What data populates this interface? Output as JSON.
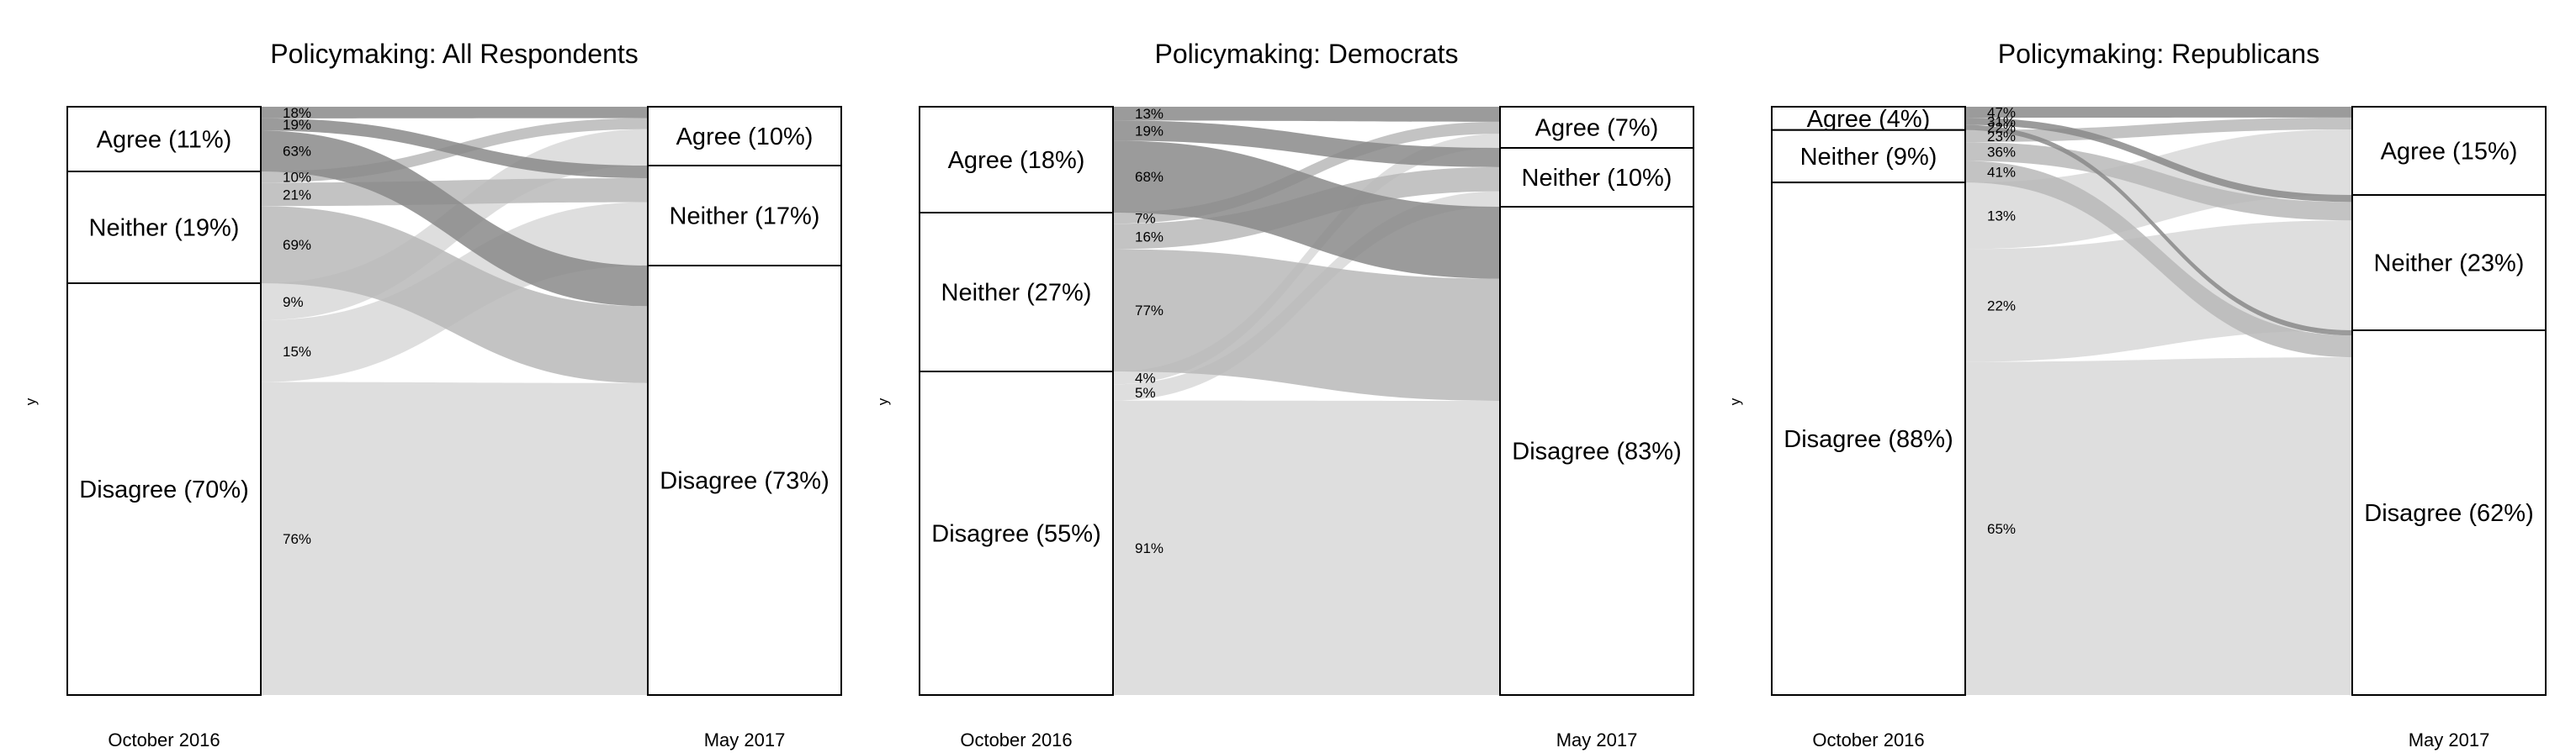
{
  "chart_data": [
    {
      "type": "alluvial",
      "title": "Policymaking: All Respondents",
      "ylabel": "y",
      "axis_left_label": "October 2016",
      "axis_right_label": "May 2017",
      "left": [
        {
          "name": "Agree",
          "label": "Agree (11%)",
          "value": 11
        },
        {
          "name": "Neither",
          "label": "Neither (19%)",
          "value": 19
        },
        {
          "name": "Disagree",
          "label": "Disagree (70%)",
          "value": 70
        }
      ],
      "right": [
        {
          "name": "Agree",
          "label": "Agree (10%)",
          "value": 10
        },
        {
          "name": "Neither",
          "label": "Neither (17%)",
          "value": 17
        },
        {
          "name": "Disagree",
          "label": "Disagree (73%)",
          "value": 73
        }
      ],
      "flows": [
        {
          "from": "Agree",
          "to": "Agree",
          "pct": 18,
          "label": "18%"
        },
        {
          "from": "Agree",
          "to": "Neither",
          "pct": 19,
          "label": "19%"
        },
        {
          "from": "Agree",
          "to": "Disagree",
          "pct": 63,
          "label": "63%"
        },
        {
          "from": "Neither",
          "to": "Agree",
          "pct": 10,
          "label": "10%"
        },
        {
          "from": "Neither",
          "to": "Neither",
          "pct": 21,
          "label": "21%"
        },
        {
          "from": "Neither",
          "to": "Disagree",
          "pct": 69,
          "label": "69%"
        },
        {
          "from": "Disagree",
          "to": "Agree",
          "pct": 9,
          "label": "9%"
        },
        {
          "from": "Disagree",
          "to": "Neither",
          "pct": 15,
          "label": "15%"
        },
        {
          "from": "Disagree",
          "to": "Disagree",
          "pct": 76,
          "label": "76%"
        }
      ]
    },
    {
      "type": "alluvial",
      "title": "Policymaking: Democrats",
      "ylabel": "y",
      "axis_left_label": "October 2016",
      "axis_right_label": "May 2017",
      "left": [
        {
          "name": "Agree",
          "label": "Agree (18%)",
          "value": 18
        },
        {
          "name": "Neither",
          "label": "Neither (27%)",
          "value": 27
        },
        {
          "name": "Disagree",
          "label": "Disagree (55%)",
          "value": 55
        }
      ],
      "right": [
        {
          "name": "Agree",
          "label": "Agree (7%)",
          "value": 7
        },
        {
          "name": "Neither",
          "label": "Neither (10%)",
          "value": 10
        },
        {
          "name": "Disagree",
          "label": "Disagree (83%)",
          "value": 83
        }
      ],
      "flows": [
        {
          "from": "Agree",
          "to": "Agree",
          "pct": 13,
          "label": "13%"
        },
        {
          "from": "Agree",
          "to": "Neither",
          "pct": 19,
          "label": "19%"
        },
        {
          "from": "Agree",
          "to": "Disagree",
          "pct": 68,
          "label": "68%"
        },
        {
          "from": "Neither",
          "to": "Agree",
          "pct": 7,
          "label": "7%"
        },
        {
          "from": "Neither",
          "to": "Neither",
          "pct": 16,
          "label": "16%"
        },
        {
          "from": "Neither",
          "to": "Disagree",
          "pct": 77,
          "label": "77%"
        },
        {
          "from": "Disagree",
          "to": "Agree",
          "pct": 4,
          "label": "4%"
        },
        {
          "from": "Disagree",
          "to": "Neither",
          "pct": 5,
          "label": "5%"
        },
        {
          "from": "Disagree",
          "to": "Disagree",
          "pct": 91,
          "label": "91%"
        }
      ]
    },
    {
      "type": "alluvial",
      "title": "Policymaking: Republicans",
      "ylabel": "y",
      "axis_left_label": "October 2016",
      "axis_right_label": "May 2017",
      "left": [
        {
          "name": "Agree",
          "label": "Agree (4%)",
          "value": 4
        },
        {
          "name": "Neither",
          "label": "Neither (9%)",
          "value": 9
        },
        {
          "name": "Disagree",
          "label": "Disagree (88%)",
          "value": 88
        }
      ],
      "right": [
        {
          "name": "Agree",
          "label": "Agree (15%)",
          "value": 15
        },
        {
          "name": "Neither",
          "label": "Neither (23%)",
          "value": 23
        },
        {
          "name": "Disagree",
          "label": "Disagree (62%)",
          "value": 62
        }
      ],
      "flows": [
        {
          "from": "Agree",
          "to": "Agree",
          "pct": 47,
          "label": "47%"
        },
        {
          "from": "Agree",
          "to": "Neither",
          "pct": 31,
          "label": "31%"
        },
        {
          "from": "Agree",
          "to": "Disagree",
          "pct": 22,
          "label": "22%"
        },
        {
          "from": "Neither",
          "to": "Agree",
          "pct": 23,
          "label": "23%"
        },
        {
          "from": "Neither",
          "to": "Neither",
          "pct": 36,
          "label": "36%"
        },
        {
          "from": "Neither",
          "to": "Disagree",
          "pct": 41,
          "label": "41%"
        },
        {
          "from": "Disagree",
          "to": "Agree",
          "pct": 13,
          "label": "13%"
        },
        {
          "from": "Disagree",
          "to": "Neither",
          "pct": 22,
          "label": "22%"
        },
        {
          "from": "Disagree",
          "to": "Disagree",
          "pct": 65,
          "label": "65%"
        }
      ]
    }
  ],
  "colors": {
    "agree_flow": "#8a8a8a",
    "neither_flow": "#b8b8b8",
    "disagree_flow": "#d8d8d8",
    "box_fill": "#ffffff",
    "box_stroke": "#000000"
  }
}
